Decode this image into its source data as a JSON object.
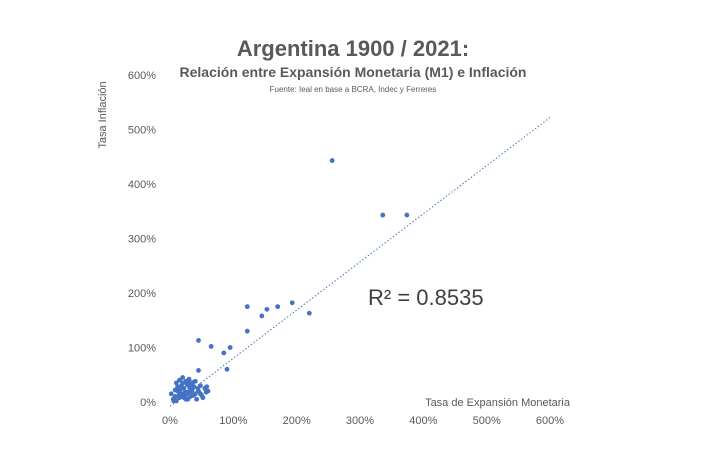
{
  "chart_data": {
    "type": "scatter",
    "title": "Argentina 1900 / 2021:",
    "subtitle": "Relación entre Expansión Monetaria (M1) e Inflación",
    "source": "Fuente: Ieal en base a BCRA, Indec y Ferreres",
    "xlabel": "Tasa de Expansión Monetaria",
    "ylabel": "Tasa Inflación",
    "xlim": [
      0,
      600
    ],
    "ylim": [
      0,
      600
    ],
    "xticks": [
      "0%",
      "100%",
      "200%",
      "300%",
      "400%",
      "500%",
      "600%"
    ],
    "yticks": [
      "0%",
      "100%",
      "200%",
      "300%",
      "400%",
      "500%",
      "600%"
    ],
    "annotation": "R² = 0.8535",
    "trendline": {
      "x": [
        0,
        600
      ],
      "y": [
        -8,
        522
      ]
    },
    "marker_color": "#4472C4",
    "trend_color": "#4472C4",
    "grid": false,
    "points": [
      [
        256,
        443
      ],
      [
        336,
        343
      ],
      [
        374,
        343
      ],
      [
        122,
        175
      ],
      [
        153,
        170
      ],
      [
        170,
        175
      ],
      [
        193,
        182
      ],
      [
        220,
        163
      ],
      [
        145,
        158
      ],
      [
        122,
        130
      ],
      [
        45,
        113
      ],
      [
        65,
        102
      ],
      [
        95,
        100
      ],
      [
        85,
        90
      ],
      [
        90,
        60
      ],
      [
        45,
        58
      ],
      [
        2,
        15
      ],
      [
        5,
        5
      ],
      [
        8,
        10
      ],
      [
        10,
        2
      ],
      [
        12,
        20
      ],
      [
        15,
        8
      ],
      [
        18,
        30
      ],
      [
        20,
        12
      ],
      [
        22,
        25
      ],
      [
        25,
        5
      ],
      [
        28,
        18
      ],
      [
        30,
        35
      ],
      [
        32,
        10
      ],
      [
        35,
        22
      ],
      [
        38,
        28
      ],
      [
        40,
        15
      ],
      [
        42,
        5
      ],
      [
        45,
        20
      ],
      [
        48,
        30
      ],
      [
        50,
        12
      ],
      [
        55,
        25
      ],
      [
        60,
        20
      ],
      [
        15,
        40
      ],
      [
        20,
        35
      ],
      [
        25,
        38
      ],
      [
        30,
        42
      ],
      [
        35,
        30
      ],
      [
        12,
        28
      ],
      [
        8,
        22
      ],
      [
        18,
        15
      ],
      [
        22,
        8
      ],
      [
        27,
        32
      ],
      [
        33,
        18
      ],
      [
        37,
        12
      ],
      [
        40,
        38
      ],
      [
        44,
        25
      ],
      [
        52,
        8
      ],
      [
        57,
        18
      ],
      [
        28,
        5
      ],
      [
        16,
        22
      ],
      [
        6,
        2
      ],
      [
        14,
        12
      ],
      [
        24,
        18
      ],
      [
        31,
        26
      ],
      [
        36,
        36
      ],
      [
        48,
        15
      ],
      [
        58,
        28
      ],
      [
        20,
        45
      ],
      [
        26,
        14
      ],
      [
        10,
        35
      ]
    ]
  }
}
